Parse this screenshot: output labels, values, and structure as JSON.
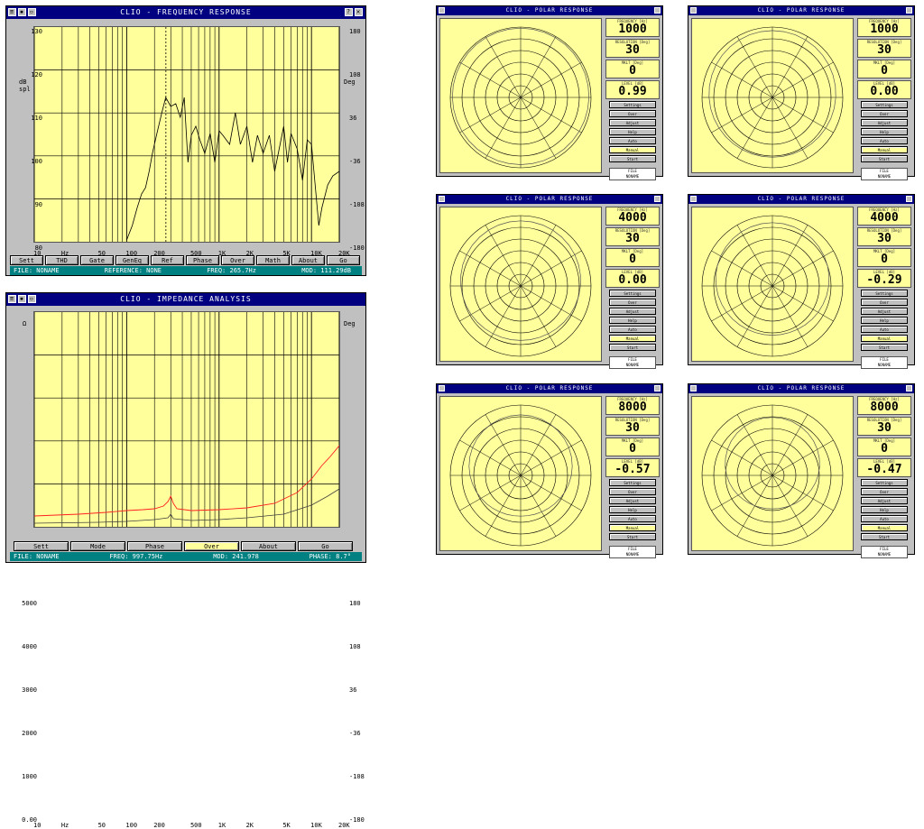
{
  "freq_window": {
    "title": "CLIO - FREQUENCY RESPONSE",
    "y_left_label": "dB spl",
    "y_right_label": "Deg",
    "y_left_ticks": [
      "130",
      "120",
      "110",
      "100",
      "90",
      "80"
    ],
    "y_right_ticks": [
      "180",
      "108",
      "36",
      "-36",
      "-108",
      "-180"
    ],
    "x_ticks": [
      "10",
      "Hz",
      "50",
      "100",
      "200",
      "500",
      "1K",
      "2K",
      "5K",
      "10K",
      "20K"
    ],
    "buttons": [
      "Sett",
      "THD",
      "Gate",
      "GenEq",
      "Ref",
      "Phase",
      "Over",
      "Math",
      "About",
      "Go"
    ],
    "status": {
      "file": "FILE: NONAME",
      "reference": "REFERENCE: NONE",
      "freq": "FREQ: 265.7Hz",
      "mod": "MOD: 111.29dB"
    }
  },
  "imp_window": {
    "title": "CLIO - IMPEDANCE ANALYSIS",
    "y_left_label": "Ω",
    "y_right_label": "Deg",
    "y_left_ticks": [
      "5000",
      "4000",
      "3000",
      "2000",
      "1000",
      "0.00"
    ],
    "y_right_ticks": [
      "180",
      "108",
      "36",
      "-36",
      "-108",
      "-180"
    ],
    "x_ticks": [
      "10",
      "Hz",
      "50",
      "100",
      "200",
      "500",
      "1K",
      "2K",
      "5K",
      "10K",
      "20K"
    ],
    "buttons": [
      "Sett",
      "Mode",
      "Phase",
      "Over",
      "About",
      "Go"
    ],
    "status": {
      "file": "FILE: NONAME",
      "freq": "FREQ: 997.75Hz",
      "mod": "MOD: 241.978",
      "phase": "PHASE: 8.7°"
    }
  },
  "polar_windows": [
    {
      "title": "CLIO - POLAR RESPONSE",
      "freq": "1000",
      "resolution": "30",
      "marker": "0",
      "level": "0.99"
    },
    {
      "title": "CLIO - POLAR RESPONSE",
      "freq": "1000",
      "resolution": "30",
      "marker": "0",
      "level": "0.00"
    },
    {
      "title": "CLIO - POLAR RESPONSE",
      "freq": "4000",
      "resolution": "30",
      "marker": "0",
      "level": "0.00"
    },
    {
      "title": "CLIO - POLAR RESPONSE",
      "freq": "4000",
      "resolution": "30",
      "marker": "0",
      "level": "-0.29"
    },
    {
      "title": "CLIO - POLAR RESPONSE",
      "freq": "8000",
      "resolution": "30",
      "marker": "0",
      "level": "-0.57"
    },
    {
      "title": "CLIO - POLAR RESPONSE",
      "freq": "8000",
      "resolution": "30",
      "marker": "0",
      "level": "-0.47"
    }
  ],
  "polar_labels": {
    "freq_label": "FREQUENCY [Hz]",
    "res_label": "RESOLUTION [Deg]",
    "marker_label": "MKLT [Deg]",
    "level_label": "LEVEL [dB]",
    "buttons": [
      "Settings",
      "Over",
      "Adjust",
      "Help",
      "Auto",
      "Manual",
      "Start"
    ],
    "file_label": "FILE",
    "file_name": "NONAME"
  },
  "colors": {
    "plot_bg": "#ffff9c",
    "title_bg": "#000080",
    "status_bg": "#008080",
    "curve_main": "#000000",
    "curve_red": "#ff2020",
    "curve_dark": "#404040"
  }
}
